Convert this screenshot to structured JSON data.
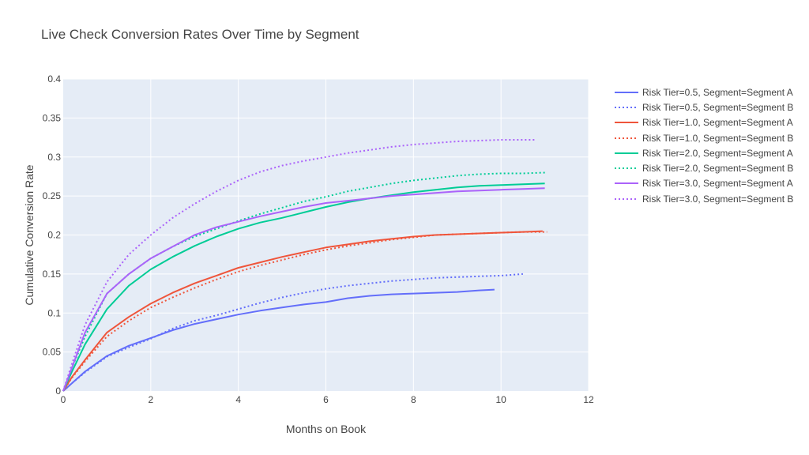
{
  "chart_data": {
    "type": "line",
    "title": "Live Check Conversion Rates Over Time by Segment",
    "xlabel": "Months on Book",
    "ylabel": "Cumulative Conversion Rate",
    "xlim": [
      0,
      12
    ],
    "ylim": [
      0,
      0.4
    ],
    "x_ticks": [
      "0",
      "2",
      "4",
      "6",
      "8",
      "10",
      "12"
    ],
    "y_ticks": [
      "0",
      "0.05",
      "0.1",
      "0.15",
      "0.2",
      "0.25",
      "0.3",
      "0.35",
      "0.4"
    ],
    "grid": true,
    "legend_position": "right",
    "plot_background": "#e5ecf6",
    "series": [
      {
        "name": "Risk Tier=0.5, Segment=Segment A",
        "color": "#636efa",
        "dash": "solid",
        "x": [
          0,
          0.2,
          0.5,
          1,
          1.5,
          2,
          2.5,
          3,
          3.5,
          4,
          4.5,
          5,
          5.5,
          6,
          6.5,
          7,
          7.5,
          8,
          8.5,
          9,
          9.5,
          9.85
        ],
        "y": [
          0,
          0.01,
          0.025,
          0.045,
          0.058,
          0.068,
          0.078,
          0.086,
          0.092,
          0.098,
          0.103,
          0.107,
          0.111,
          0.114,
          0.119,
          0.122,
          0.124,
          0.125,
          0.126,
          0.127,
          0.129,
          0.13
        ]
      },
      {
        "name": "Risk Tier=0.5, Segment=Segment B",
        "color": "#636efa",
        "dash": "dot",
        "x": [
          0,
          0.2,
          0.5,
          1,
          1.5,
          2,
          2.5,
          3,
          3.5,
          4,
          4.5,
          5,
          5.5,
          6,
          6.5,
          7,
          7.5,
          8,
          8.5,
          9,
          9.5,
          10,
          10.5
        ],
        "y": [
          0,
          0.01,
          0.024,
          0.044,
          0.056,
          0.067,
          0.08,
          0.09,
          0.097,
          0.105,
          0.113,
          0.12,
          0.126,
          0.131,
          0.135,
          0.138,
          0.141,
          0.143,
          0.145,
          0.146,
          0.147,
          0.148,
          0.15
        ]
      },
      {
        "name": "Risk Tier=1.0, Segment=Segment A",
        "color": "#ef553b",
        "dash": "solid",
        "x": [
          0,
          0.2,
          0.5,
          1,
          1.5,
          2,
          2.5,
          3,
          3.5,
          4,
          4.5,
          5,
          5.5,
          6,
          6.5,
          7,
          7.5,
          8,
          8.5,
          9,
          9.5,
          10,
          10.5,
          10.95
        ],
        "y": [
          0,
          0.018,
          0.04,
          0.075,
          0.095,
          0.112,
          0.126,
          0.138,
          0.148,
          0.158,
          0.165,
          0.172,
          0.178,
          0.184,
          0.188,
          0.192,
          0.195,
          0.198,
          0.2,
          0.201,
          0.202,
          0.203,
          0.204,
          0.205
        ]
      },
      {
        "name": "Risk Tier=1.0, Segment=Segment B",
        "color": "#ef553b",
        "dash": "dot",
        "x": [
          0,
          0.2,
          0.5,
          1,
          1.5,
          2,
          2.5,
          3,
          3.5,
          4,
          4.5,
          5,
          5.5,
          6,
          6.5,
          7,
          7.5,
          8,
          8.5,
          9,
          9.5,
          10,
          10.5,
          11.05
        ],
        "y": [
          0,
          0.017,
          0.038,
          0.07,
          0.09,
          0.107,
          0.12,
          0.132,
          0.143,
          0.153,
          0.161,
          0.168,
          0.175,
          0.181,
          0.186,
          0.19,
          0.194,
          0.197,
          0.2,
          0.201,
          0.202,
          0.203,
          0.204,
          0.204
        ]
      },
      {
        "name": "Risk Tier=2.0, Segment=Segment A",
        "color": "#00cc96",
        "dash": "solid",
        "x": [
          0,
          0.2,
          0.5,
          1,
          1.5,
          2,
          2.5,
          3,
          3.5,
          4,
          4.5,
          5,
          5.5,
          6,
          6.5,
          7,
          7.5,
          8,
          8.5,
          9,
          9.5,
          10,
          10.5,
          11
        ],
        "y": [
          0,
          0.025,
          0.06,
          0.105,
          0.135,
          0.156,
          0.172,
          0.186,
          0.198,
          0.208,
          0.216,
          0.222,
          0.229,
          0.236,
          0.242,
          0.247,
          0.251,
          0.255,
          0.258,
          0.261,
          0.263,
          0.264,
          0.265,
          0.266
        ]
      },
      {
        "name": "Risk Tier=2.0, Segment=Segment B",
        "color": "#00cc96",
        "dash": "dot",
        "x": [
          0,
          0.2,
          0.5,
          1,
          1.5,
          2,
          2.5,
          3,
          3.5,
          4,
          4.5,
          5,
          5.5,
          6,
          6.5,
          7,
          7.5,
          8,
          8.5,
          9,
          9.5,
          10,
          10.5,
          11
        ],
        "y": [
          0,
          0.03,
          0.07,
          0.125,
          0.15,
          0.17,
          0.185,
          0.198,
          0.208,
          0.218,
          0.227,
          0.235,
          0.243,
          0.249,
          0.256,
          0.261,
          0.266,
          0.27,
          0.273,
          0.276,
          0.278,
          0.279,
          0.279,
          0.28
        ]
      },
      {
        "name": "Risk Tier=3.0, Segment=Segment A",
        "color": "#ab63fa",
        "dash": "solid",
        "x": [
          0,
          0.2,
          0.5,
          1,
          1.5,
          2,
          2.5,
          3,
          3.5,
          4,
          4.5,
          5,
          5.5,
          6,
          6.5,
          7,
          7.5,
          8,
          8.5,
          9,
          9.5,
          10,
          10.5,
          11
        ],
        "y": [
          0,
          0.03,
          0.075,
          0.125,
          0.15,
          0.17,
          0.185,
          0.2,
          0.21,
          0.217,
          0.224,
          0.23,
          0.236,
          0.241,
          0.244,
          0.247,
          0.25,
          0.252,
          0.254,
          0.256,
          0.257,
          0.258,
          0.259,
          0.26
        ]
      },
      {
        "name": "Risk Tier=3.0, Segment=Segment B",
        "color": "#ab63fa",
        "dash": "dot",
        "x": [
          0,
          0.2,
          0.5,
          1,
          1.5,
          2,
          2.5,
          3,
          3.5,
          4,
          4.5,
          5,
          5.5,
          6,
          6.5,
          7,
          7.5,
          8,
          8.5,
          9,
          9.5,
          10,
          10.5,
          10.8
        ],
        "y": [
          0,
          0.035,
          0.085,
          0.14,
          0.175,
          0.2,
          0.222,
          0.24,
          0.256,
          0.27,
          0.281,
          0.289,
          0.295,
          0.3,
          0.305,
          0.309,
          0.313,
          0.316,
          0.318,
          0.32,
          0.321,
          0.322,
          0.322,
          0.322
        ]
      }
    ]
  }
}
